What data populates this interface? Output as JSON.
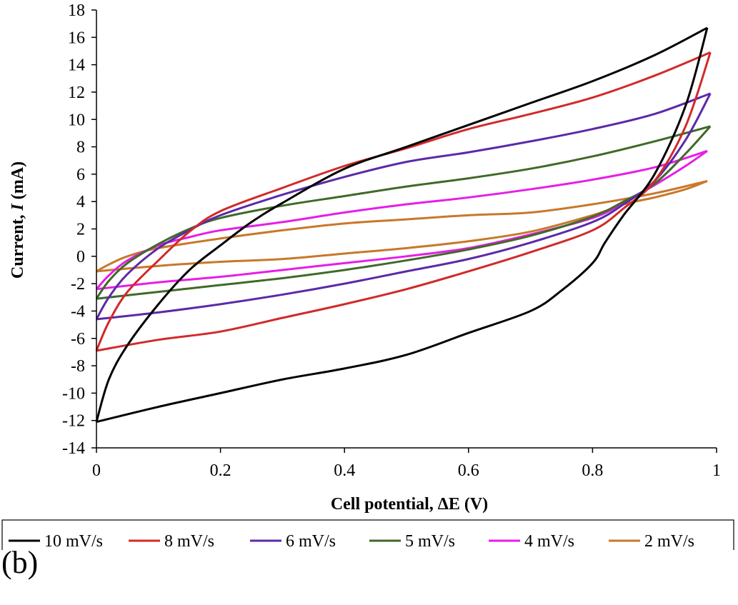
{
  "chart_data": {
    "type": "line",
    "xlabel": "Cell potential, ΔE (V)",
    "ylabel_parts": [
      "Current, ",
      "I",
      " (mA)"
    ],
    "xlim": [
      0,
      1
    ],
    "ylim": [
      -14,
      18
    ],
    "xticks": [
      0,
      0.2,
      0.4,
      0.6,
      0.8,
      1
    ],
    "xtick_labels": [
      "0",
      "0.2",
      "0.4",
      "0.6",
      "0.8",
      "1"
    ],
    "yticks": [
      -14,
      -12,
      -10,
      -8,
      -6,
      -4,
      -2,
      0,
      2,
      4,
      6,
      8,
      10,
      12,
      14,
      16,
      18
    ],
    "ytick_labels": [
      "-14",
      "-12",
      "-10",
      "-8",
      "-6",
      "-4",
      "-2",
      "0",
      "2",
      "4",
      "6",
      "8",
      "10",
      "12",
      "14",
      "16",
      "18"
    ],
    "grid": false,
    "legend_position": "bottom",
    "series": [
      {
        "name": "10 mV/s",
        "color": "#000000",
        "anodic": [
          [
            0,
            -12.1
          ],
          [
            0.02,
            -9.0
          ],
          [
            0.05,
            -6.5
          ],
          [
            0.1,
            -3.5
          ],
          [
            0.15,
            -1.0
          ],
          [
            0.2,
            0.8
          ],
          [
            0.25,
            2.5
          ],
          [
            0.3,
            3.9
          ],
          [
            0.4,
            6.4
          ],
          [
            0.5,
            8.0
          ],
          [
            0.6,
            9.6
          ],
          [
            0.7,
            11.2
          ],
          [
            0.8,
            12.8
          ],
          [
            0.9,
            14.7
          ],
          [
            0.985,
            16.7
          ]
        ],
        "cathodic": [
          [
            0.985,
            16.7
          ],
          [
            0.95,
            11.0
          ],
          [
            0.9,
            6.0
          ],
          [
            0.85,
            3.0
          ],
          [
            0.82,
            1.0
          ],
          [
            0.8,
            -0.5
          ],
          [
            0.75,
            -2.5
          ],
          [
            0.7,
            -4.0
          ],
          [
            0.6,
            -5.6
          ],
          [
            0.5,
            -7.2
          ],
          [
            0.4,
            -8.2
          ],
          [
            0.3,
            -9.0
          ],
          [
            0.2,
            -10.0
          ],
          [
            0.1,
            -11.0
          ],
          [
            0,
            -12.1
          ]
        ]
      },
      {
        "name": "8 mV/s",
        "color": "#d12a2a",
        "anodic": [
          [
            0,
            -6.9
          ],
          [
            0.02,
            -4.8
          ],
          [
            0.05,
            -2.6
          ],
          [
            0.1,
            -0.3
          ],
          [
            0.15,
            1.8
          ],
          [
            0.2,
            3.3
          ],
          [
            0.3,
            5.0
          ],
          [
            0.4,
            6.6
          ],
          [
            0.5,
            7.9
          ],
          [
            0.6,
            9.3
          ],
          [
            0.7,
            10.4
          ],
          [
            0.8,
            11.6
          ],
          [
            0.9,
            13.2
          ],
          [
            0.99,
            14.9
          ]
        ],
        "cathodic": [
          [
            0.99,
            14.9
          ],
          [
            0.95,
            9.5
          ],
          [
            0.9,
            5.5
          ],
          [
            0.85,
            3.5
          ],
          [
            0.8,
            1.9
          ],
          [
            0.7,
            0.3
          ],
          [
            0.6,
            -1.1
          ],
          [
            0.5,
            -2.4
          ],
          [
            0.4,
            -3.5
          ],
          [
            0.3,
            -4.5
          ],
          [
            0.2,
            -5.5
          ],
          [
            0.1,
            -6.1
          ],
          [
            0,
            -6.9
          ]
        ]
      },
      {
        "name": "6 mV/s",
        "color": "#5b2aa8",
        "anodic": [
          [
            0,
            -4.6
          ],
          [
            0.02,
            -3.0
          ],
          [
            0.05,
            -1.3
          ],
          [
            0.1,
            0.6
          ],
          [
            0.15,
            1.9
          ],
          [
            0.2,
            3.0
          ],
          [
            0.3,
            4.5
          ],
          [
            0.4,
            5.8
          ],
          [
            0.5,
            6.9
          ],
          [
            0.6,
            7.6
          ],
          [
            0.7,
            8.4
          ],
          [
            0.8,
            9.3
          ],
          [
            0.9,
            10.4
          ],
          [
            0.99,
            11.9
          ]
        ],
        "cathodic": [
          [
            0.99,
            11.9
          ],
          [
            0.95,
            8.5
          ],
          [
            0.9,
            5.5
          ],
          [
            0.85,
            3.8
          ],
          [
            0.8,
            2.5
          ],
          [
            0.7,
            1.0
          ],
          [
            0.6,
            -0.2
          ],
          [
            0.5,
            -1.1
          ],
          [
            0.4,
            -2.0
          ],
          [
            0.3,
            -2.8
          ],
          [
            0.2,
            -3.5
          ],
          [
            0.1,
            -4.1
          ],
          [
            0,
            -4.6
          ]
        ]
      },
      {
        "name": "5 mV/s",
        "color": "#3f6a28",
        "anodic": [
          [
            0,
            -3.1
          ],
          [
            0.02,
            -1.8
          ],
          [
            0.05,
            -0.5
          ],
          [
            0.1,
            0.9
          ],
          [
            0.15,
            2.0
          ],
          [
            0.2,
            2.8
          ],
          [
            0.3,
            3.7
          ],
          [
            0.4,
            4.4
          ],
          [
            0.5,
            5.1
          ],
          [
            0.6,
            5.7
          ],
          [
            0.7,
            6.4
          ],
          [
            0.8,
            7.3
          ],
          [
            0.9,
            8.4
          ],
          [
            0.99,
            9.5
          ]
        ],
        "cathodic": [
          [
            0.99,
            9.5
          ],
          [
            0.95,
            7.5
          ],
          [
            0.9,
            5.3
          ],
          [
            0.85,
            4.0
          ],
          [
            0.8,
            2.9
          ],
          [
            0.7,
            1.5
          ],
          [
            0.6,
            0.5
          ],
          [
            0.5,
            -0.3
          ],
          [
            0.4,
            -1.0
          ],
          [
            0.3,
            -1.6
          ],
          [
            0.2,
            -2.1
          ],
          [
            0.1,
            -2.6
          ],
          [
            0,
            -3.1
          ]
        ]
      },
      {
        "name": "4 mV/s",
        "color": "#e61ee6",
        "anodic": [
          [
            0,
            -2.4
          ],
          [
            0.02,
            -1.4
          ],
          [
            0.05,
            -0.3
          ],
          [
            0.1,
            0.8
          ],
          [
            0.15,
            1.4
          ],
          [
            0.2,
            1.9
          ],
          [
            0.3,
            2.5
          ],
          [
            0.4,
            3.2
          ],
          [
            0.5,
            3.8
          ],
          [
            0.6,
            4.3
          ],
          [
            0.7,
            4.9
          ],
          [
            0.8,
            5.6
          ],
          [
            0.9,
            6.5
          ],
          [
            0.985,
            7.7
          ]
        ],
        "cathodic": [
          [
            0.985,
            7.7
          ],
          [
            0.95,
            6.6
          ],
          [
            0.9,
            5.2
          ],
          [
            0.85,
            3.9
          ],
          [
            0.8,
            2.8
          ],
          [
            0.7,
            1.6
          ],
          [
            0.6,
            0.6
          ],
          [
            0.5,
            0
          ],
          [
            0.4,
            -0.5
          ],
          [
            0.3,
            -1.0
          ],
          [
            0.2,
            -1.5
          ],
          [
            0.1,
            -1.9
          ],
          [
            0,
            -2.4
          ]
        ]
      },
      {
        "name": "2 mV/s",
        "color": "#c8782a",
        "anodic": [
          [
            0,
            -1.1
          ],
          [
            0.02,
            -0.6
          ],
          [
            0.05,
            0
          ],
          [
            0.1,
            0.6
          ],
          [
            0.2,
            1.3
          ],
          [
            0.3,
            1.9
          ],
          [
            0.4,
            2.4
          ],
          [
            0.5,
            2.7
          ],
          [
            0.6,
            3.0
          ],
          [
            0.7,
            3.2
          ],
          [
            0.8,
            3.8
          ],
          [
            0.9,
            4.6
          ],
          [
            0.985,
            5.5
          ]
        ],
        "cathodic": [
          [
            0.985,
            5.5
          ],
          [
            0.95,
            4.9
          ],
          [
            0.9,
            4.3
          ],
          [
            0.85,
            3.8
          ],
          [
            0.8,
            3.0
          ],
          [
            0.7,
            1.8
          ],
          [
            0.6,
            1.1
          ],
          [
            0.5,
            0.6
          ],
          [
            0.4,
            0.2
          ],
          [
            0.3,
            -0.2
          ],
          [
            0.2,
            -0.4
          ],
          [
            0.1,
            -0.7
          ],
          [
            0,
            -1.1
          ]
        ]
      }
    ]
  },
  "panel_label": "(b)"
}
